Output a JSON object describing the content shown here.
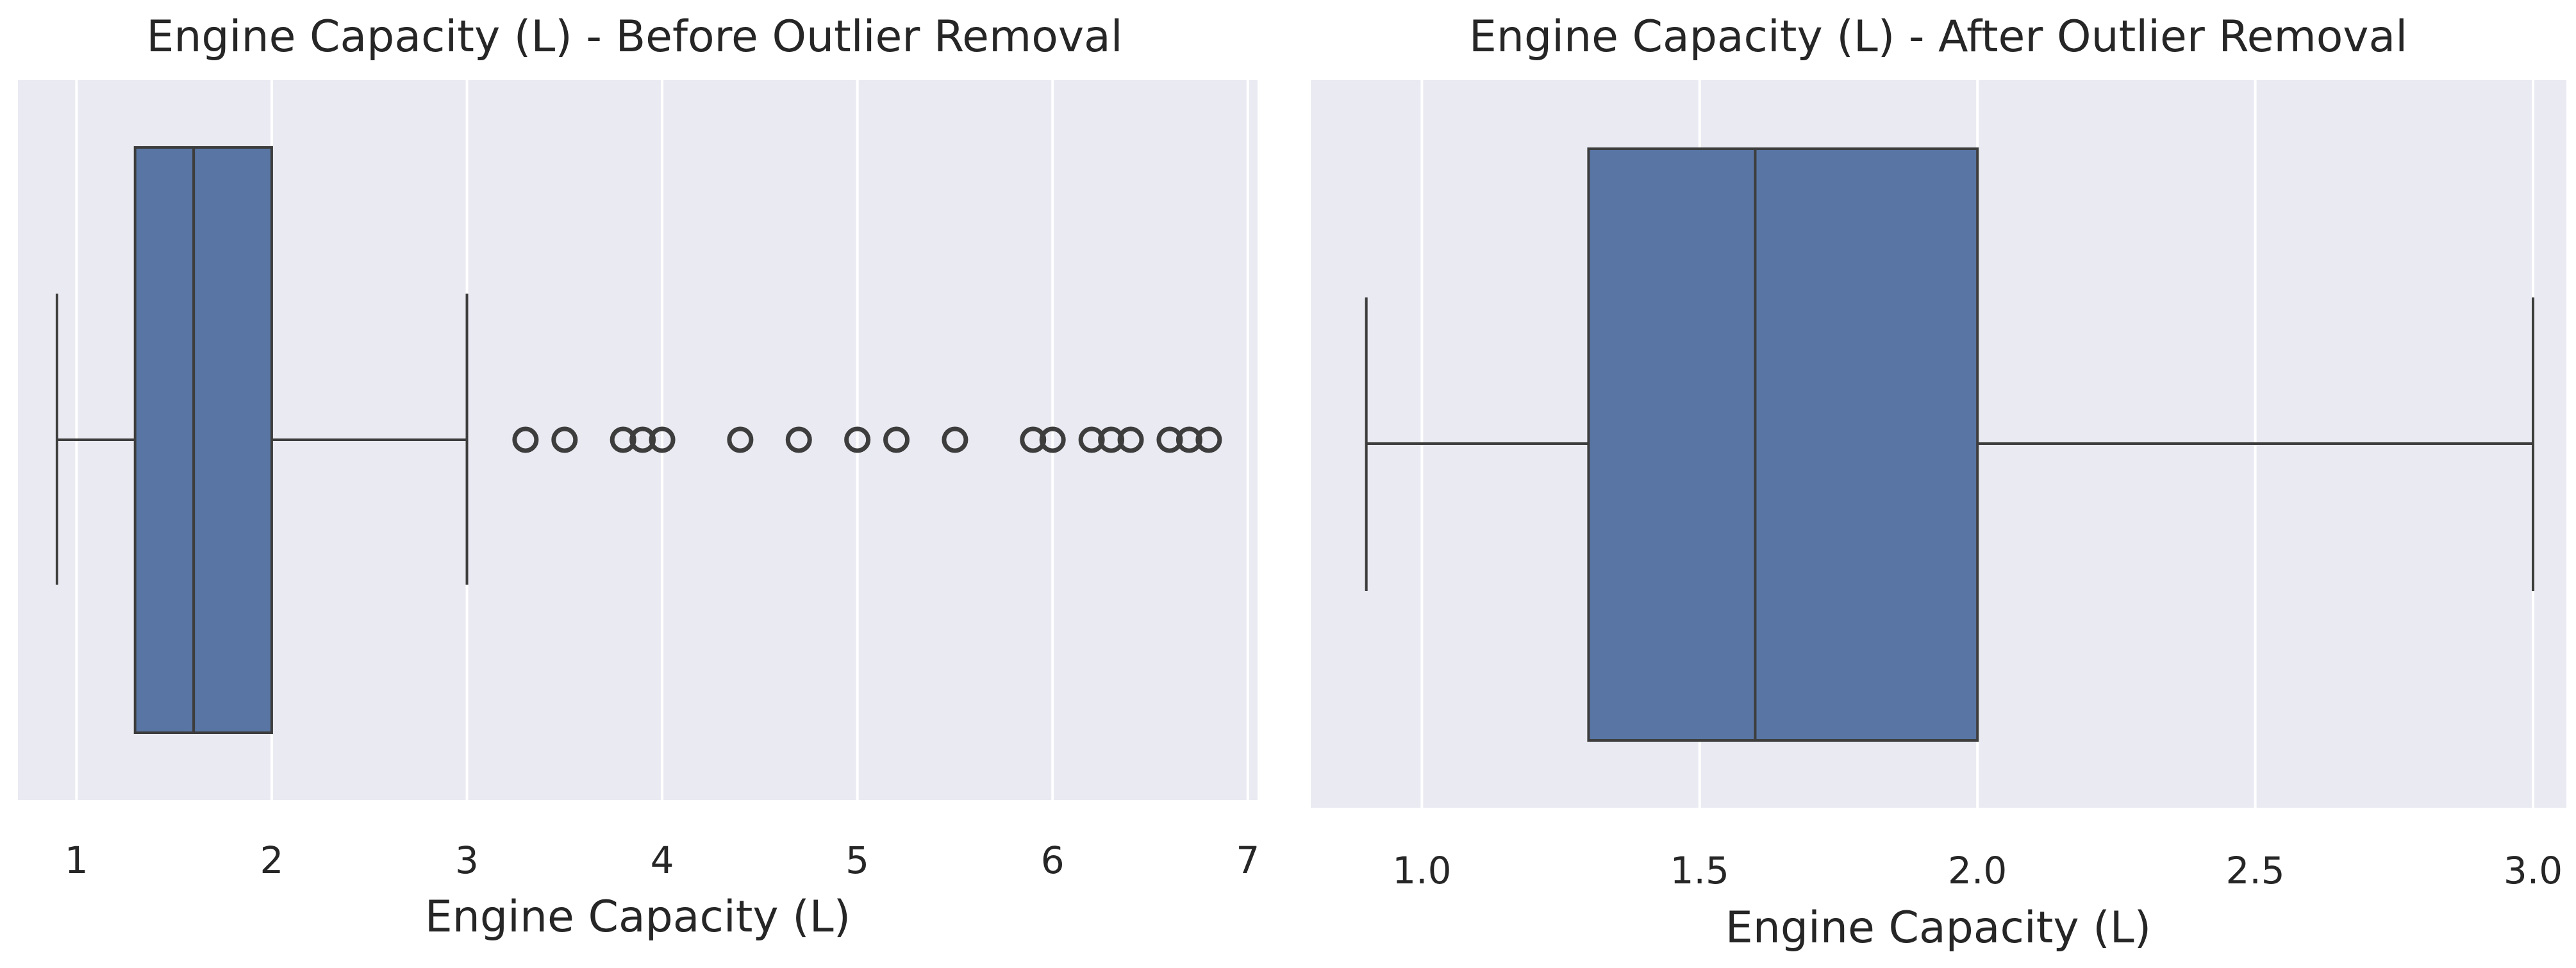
{
  "chart_data": [
    {
      "type": "box",
      "title": "Engine Capacity (L) - Before Outlier Removal",
      "xlabel": "Engine Capacity (L)",
      "xlim": [
        0.7,
        7.05
      ],
      "ticks": [
        1,
        2,
        3,
        4,
        5,
        6,
        7
      ],
      "tick_labels": [
        "1",
        "2",
        "3",
        "4",
        "5",
        "6",
        "7"
      ],
      "grid": true,
      "box": {
        "whislo": 0.9,
        "q1": 1.3,
        "med": 1.6,
        "q3": 2.0,
        "whishi": 3.0
      },
      "fliers": [
        3.3,
        3.5,
        3.8,
        3.9,
        4.0,
        4.4,
        4.7,
        5.0,
        5.2,
        5.5,
        5.9,
        6.0,
        6.2,
        6.3,
        6.4,
        6.6,
        6.7,
        6.8
      ],
      "colors": {
        "box": "#5875a4",
        "line": "#3d3d3d",
        "background": "#eaeaf2"
      }
    },
    {
      "type": "box",
      "title": "Engine Capacity (L) - After Outlier Removal",
      "xlabel": "Engine Capacity (L)",
      "xlim": [
        0.8,
        3.06
      ],
      "ticks": [
        1.0,
        1.5,
        2.0,
        2.5,
        3.0
      ],
      "tick_labels": [
        "1.0",
        "1.5",
        "2.0",
        "2.5",
        "3.0"
      ],
      "grid": true,
      "box": {
        "whislo": 0.9,
        "q1": 1.3,
        "med": 1.6,
        "q3": 2.0,
        "whishi": 3.0
      },
      "fliers": [],
      "colors": {
        "box": "#5875a4",
        "line": "#3d3d3d",
        "background": "#eaeaf2"
      }
    }
  ]
}
